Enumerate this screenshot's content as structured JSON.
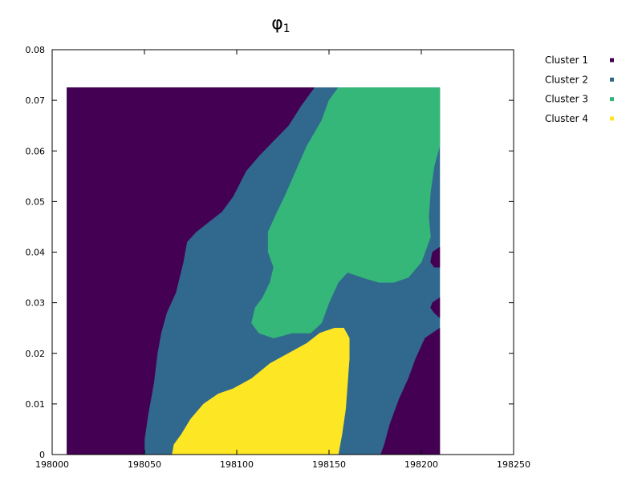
{
  "chart_data": {
    "type": "heatmap",
    "title": "φ1",
    "title_symbol": "φ",
    "title_subscript": "1",
    "xlabel": "",
    "ylabel": "",
    "xlim": [
      198000,
      198250
    ],
    "ylim": [
      0,
      0.08
    ],
    "x_ticks": [
      "198000",
      "198050",
      "198100",
      "198150",
      "198200",
      "198250"
    ],
    "y_ticks": [
      "0",
      "0.01",
      "0.02",
      "0.03",
      "0.04",
      "0.05",
      "0.06",
      "0.07",
      "0.08"
    ],
    "grid": false,
    "legend_position": "outside-right",
    "series": [
      {
        "name": "Cluster 1",
        "color": "#440154"
      },
      {
        "name": "Cluster 2",
        "color": "#31688e"
      },
      {
        "name": "Cluster 3",
        "color": "#35b779"
      },
      {
        "name": "Cluster 4",
        "color": "#fde725"
      }
    ],
    "data_extent": {
      "x": [
        198008,
        198210
      ],
      "y": [
        0,
        0.0725
      ]
    },
    "regions": [
      {
        "series": "Cluster 2",
        "polygon": [
          [
            198008,
            0
          ],
          [
            198210,
            0
          ],
          [
            198210,
            0.0725
          ],
          [
            198008,
            0.0725
          ]
        ]
      },
      {
        "series": "Cluster 1",
        "polygon": [
          [
            198008,
            0
          ],
          [
            198008,
            0.0725
          ],
          [
            198142,
            0.0725
          ],
          [
            198135,
            0.069
          ],
          [
            198128,
            0.065
          ],
          [
            198120,
            0.062
          ],
          [
            198112,
            0.059
          ],
          [
            198105,
            0.056
          ],
          [
            198098,
            0.051
          ],
          [
            198092,
            0.048
          ],
          [
            198085,
            0.046
          ],
          [
            198078,
            0.044
          ],
          [
            198073,
            0.042
          ],
          [
            198071,
            0.038
          ],
          [
            198067,
            0.032
          ],
          [
            198062,
            0.028
          ],
          [
            198059,
            0.024
          ],
          [
            198057,
            0.02
          ],
          [
            198055,
            0.014
          ],
          [
            198052,
            0.008
          ],
          [
            198050,
            0.003
          ],
          [
            198050,
            0
          ]
        ]
      },
      {
        "series": "Cluster 3",
        "polygon": [
          [
            198155,
            0.0725
          ],
          [
            198210,
            0.0725
          ],
          [
            198210,
            0.061
          ],
          [
            198207,
            0.057
          ],
          [
            198205,
            0.052
          ],
          [
            198204,
            0.047
          ],
          [
            198205,
            0.043
          ],
          [
            198200,
            0.038
          ],
          [
            198193,
            0.035
          ],
          [
            198185,
            0.034
          ],
          [
            198177,
            0.034
          ],
          [
            198168,
            0.035
          ],
          [
            198160,
            0.036
          ],
          [
            198155,
            0.034
          ],
          [
            198150,
            0.03
          ],
          [
            198146,
            0.026
          ],
          [
            198140,
            0.024
          ],
          [
            198130,
            0.024
          ],
          [
            198120,
            0.023
          ],
          [
            198112,
            0.024
          ],
          [
            198108,
            0.026
          ],
          [
            198110,
            0.029
          ],
          [
            198114,
            0.031
          ],
          [
            198118,
            0.034
          ],
          [
            198120,
            0.037
          ],
          [
            198117,
            0.04
          ],
          [
            198117,
            0.044
          ],
          [
            198122,
            0.048
          ],
          [
            198126,
            0.051
          ],
          [
            198132,
            0.056
          ],
          [
            198138,
            0.061
          ],
          [
            198146,
            0.066
          ],
          [
            198150,
            0.07
          ],
          [
            198155,
            0.0725
          ]
        ]
      },
      {
        "series": "Cluster 1",
        "polygon": [
          [
            198178,
            0
          ],
          [
            198210,
            0
          ],
          [
            198210,
            0.025
          ],
          [
            198202,
            0.023
          ],
          [
            198197,
            0.019
          ],
          [
            198193,
            0.015
          ],
          [
            198188,
            0.011
          ],
          [
            198183,
            0.006
          ],
          [
            198180,
            0.002
          ]
        ]
      },
      {
        "series": "Cluster 1",
        "polygon": [
          [
            198210,
            0.041
          ],
          [
            198206,
            0.04
          ],
          [
            198205,
            0.038
          ],
          [
            198207,
            0.037
          ],
          [
            198210,
            0.037
          ]
        ]
      },
      {
        "series": "Cluster 1",
        "polygon": [
          [
            198210,
            0.031
          ],
          [
            198206,
            0.03
          ],
          [
            198205,
            0.029
          ],
          [
            198207,
            0.028
          ],
          [
            198210,
            0.027
          ]
        ]
      },
      {
        "series": "Cluster 4",
        "polygon": [
          [
            198065,
            0
          ],
          [
            198155,
            0
          ],
          [
            198157,
            0.004
          ],
          [
            198159,
            0.009
          ],
          [
            198160,
            0.014
          ],
          [
            198161,
            0.019
          ],
          [
            198161,
            0.023
          ],
          [
            198158,
            0.025
          ],
          [
            198153,
            0.025
          ],
          [
            198145,
            0.024
          ],
          [
            198138,
            0.022
          ],
          [
            198128,
            0.02
          ],
          [
            198118,
            0.018
          ],
          [
            198108,
            0.015
          ],
          [
            198098,
            0.013
          ],
          [
            198090,
            0.012
          ],
          [
            198082,
            0.01
          ],
          [
            198075,
            0.007
          ],
          [
            198070,
            0.004
          ],
          [
            198066,
            0.002
          ]
        ]
      }
    ]
  }
}
